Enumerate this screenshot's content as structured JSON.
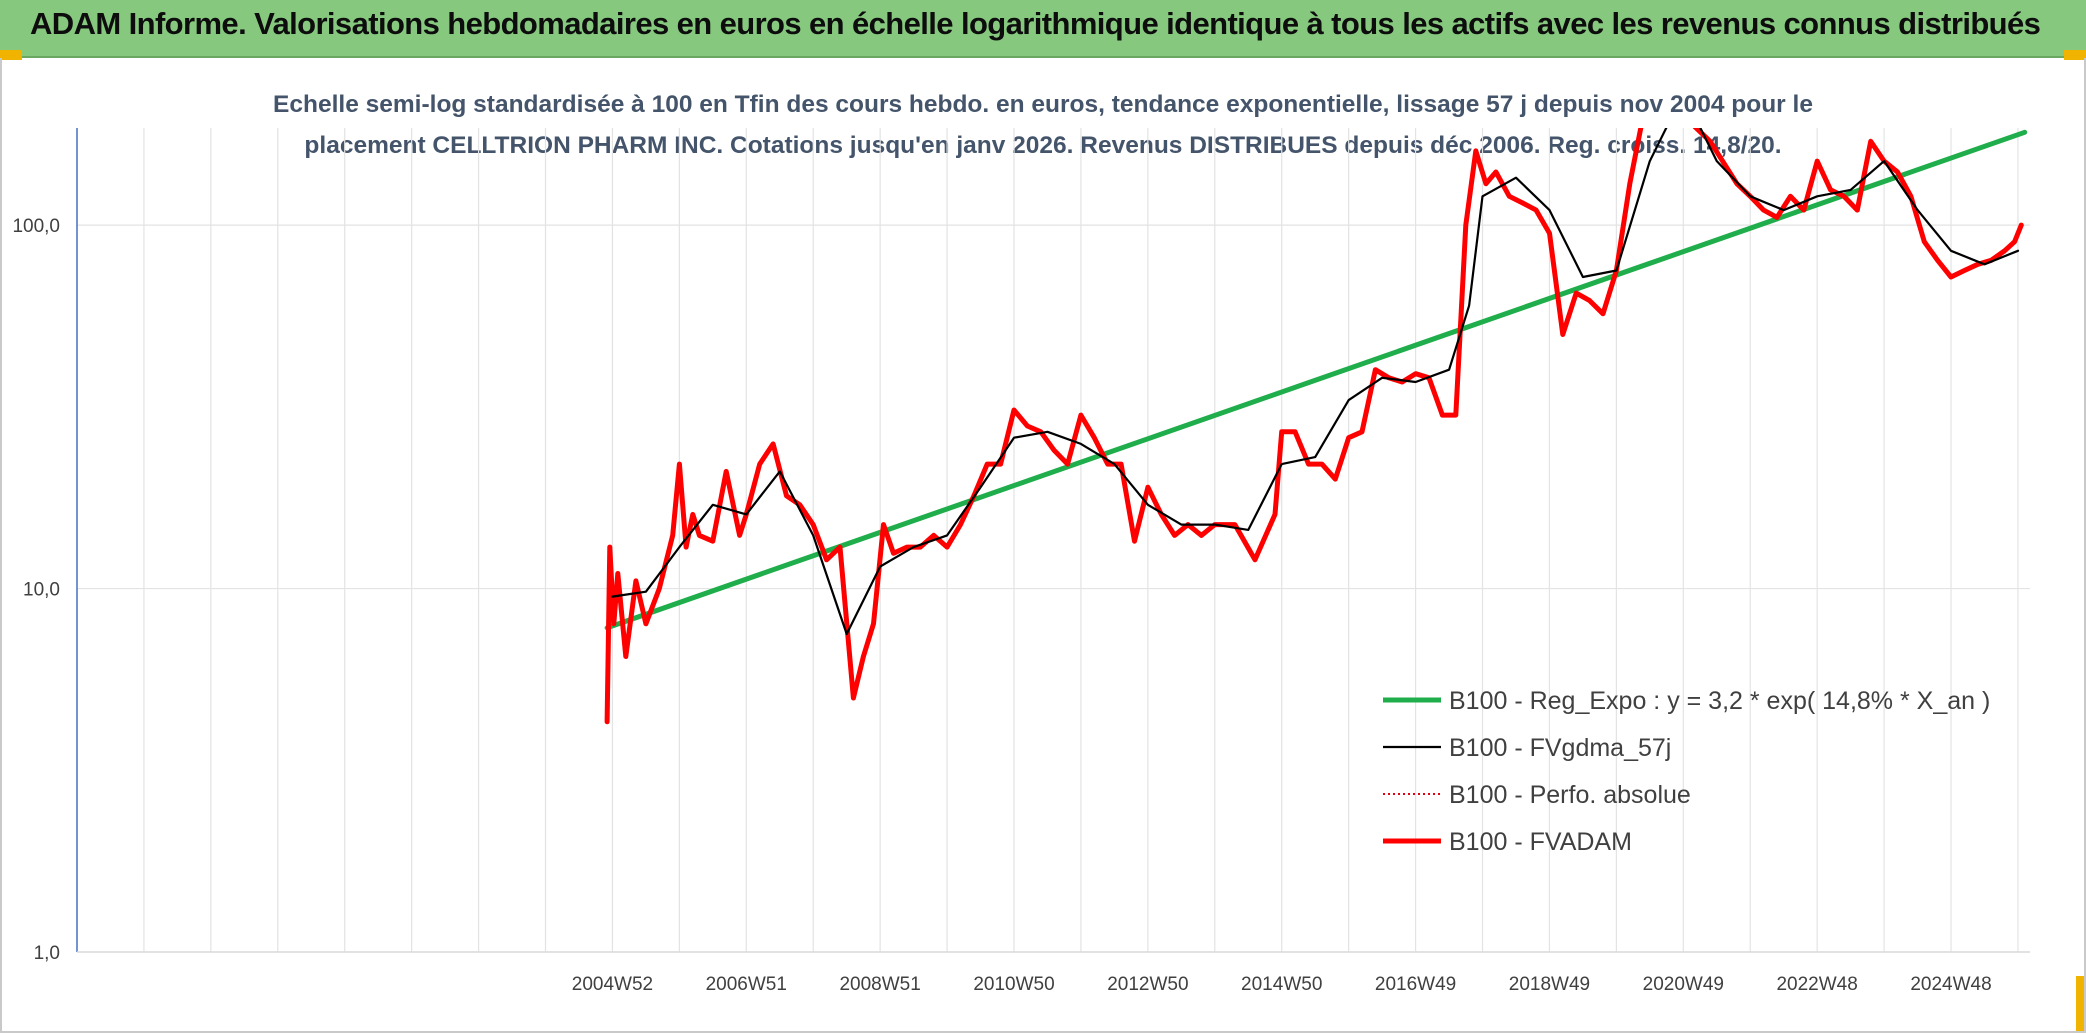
{
  "banner": {
    "title": "ADAM Informe. Valorisations hebdomadaires en euros en échelle logarithmique identique à tous les actifs avec les revenus connus distribués"
  },
  "chart_data": {
    "type": "line",
    "subtitle_lines": [
      "Echelle semi-log standardisée à 100 en Tfin des cours hebdo. en euros, tendance exponentielle, lissage 57 j depuis nov 2004 pour le",
      "placement CELLTRION PHARM INC. Cotations jusqu'en janv 2026. Revenus DISTRIBUES depuis déc 2006. Reg. croiss. 14,8/20."
    ],
    "y_scale": "log",
    "ylim": [
      1,
      185
    ],
    "y_ticks": [
      {
        "value": 1,
        "label": "1,0"
      },
      {
        "value": 10,
        "label": "10,0"
      },
      {
        "value": 100,
        "label": "100,0"
      }
    ],
    "xlim": [
      1997.0,
      2026.15
    ],
    "x_ticks": [
      {
        "value": 2005.0,
        "label": "2004W52"
      },
      {
        "value": 2007.0,
        "label": "2006W51"
      },
      {
        "value": 2009.0,
        "label": "2008W51"
      },
      {
        "value": 2011.0,
        "label": "2010W50"
      },
      {
        "value": 2013.0,
        "label": "2012W50"
      },
      {
        "value": 2015.0,
        "label": "2014W50"
      },
      {
        "value": 2017.0,
        "label": "2016W49"
      },
      {
        "value": 2019.0,
        "label": "2018W49"
      },
      {
        "value": 2021.0,
        "label": "2020W49"
      },
      {
        "value": 2023.0,
        "label": "2022W48"
      },
      {
        "value": 2025.0,
        "label": "2024W48"
      }
    ],
    "grid": true,
    "legend_position": "bottom-right",
    "series": [
      {
        "name": "B100 - Reg_Expo : y = 3,2 * exp( 14,8% *  X_an )",
        "color": "#1fae4b",
        "style": "thick",
        "x": [
          2004.92,
          2026.1
        ],
        "y": [
          7.8,
          180
        ]
      },
      {
        "name": "B100 - FVgdma_57j",
        "color": "#000000",
        "style": "thin",
        "x": [
          2005.0,
          2005.5,
          2006.0,
          2006.5,
          2007.0,
          2007.5,
          2008.0,
          2008.5,
          2009.0,
          2009.5,
          2010.0,
          2010.5,
          2011.0,
          2011.5,
          2012.0,
          2012.5,
          2013.0,
          2013.5,
          2014.0,
          2014.5,
          2015.0,
          2015.5,
          2016.0,
          2016.5,
          2017.0,
          2017.5,
          2017.8,
          2018.0,
          2018.5,
          2019.0,
          2019.5,
          2020.0,
          2020.5,
          2021.0,
          2021.5,
          2022.0,
          2022.5,
          2023.0,
          2023.5,
          2024.0,
          2024.5,
          2025.0,
          2025.5,
          2026.0
        ],
        "y": [
          9.5,
          9.8,
          13.0,
          17.0,
          16.0,
          21.0,
          14.0,
          7.5,
          11.5,
          13.0,
          14.0,
          19.0,
          26.0,
          27.0,
          25.0,
          22.0,
          17.0,
          15.0,
          15.0,
          14.5,
          22.0,
          23.0,
          33.0,
          38.0,
          37.0,
          40.0,
          60.0,
          120.0,
          135.0,
          110.0,
          72.0,
          75.0,
          150.0,
          230.0,
          150.0,
          120.0,
          110.0,
          120.0,
          125.0,
          150.0,
          110.0,
          85.0,
          78.0,
          85.0
        ]
      },
      {
        "name": "B100 - Perfo. absolue",
        "color": "#e0000f",
        "style": "dotted",
        "x": [],
        "y": []
      },
      {
        "name": "B100 - FVADAM",
        "color": "#ff0000",
        "style": "thick",
        "x": [
          2004.92,
          2004.96,
          2005.02,
          2005.08,
          2005.2,
          2005.35,
          2005.5,
          2005.7,
          2005.9,
          2006.0,
          2006.1,
          2006.2,
          2006.3,
          2006.5,
          2006.7,
          2006.9,
          2007.0,
          2007.2,
          2007.4,
          2007.6,
          2007.8,
          2008.0,
          2008.2,
          2008.4,
          2008.6,
          2008.75,
          2008.9,
          2009.05,
          2009.2,
          2009.4,
          2009.6,
          2009.8,
          2010.0,
          2010.2,
          2010.4,
          2010.6,
          2010.8,
          2011.0,
          2011.2,
          2011.4,
          2011.6,
          2011.8,
          2012.0,
          2012.2,
          2012.4,
          2012.6,
          2012.8,
          2013.0,
          2013.2,
          2013.4,
          2013.6,
          2013.8,
          2014.0,
          2014.3,
          2014.6,
          2014.9,
          2015.0,
          2015.2,
          2015.4,
          2015.6,
          2015.8,
          2016.0,
          2016.2,
          2016.4,
          2016.6,
          2016.8,
          2017.0,
          2017.2,
          2017.4,
          2017.6,
          2017.75,
          2017.9,
          2018.05,
          2018.2,
          2018.4,
          2018.6,
          2018.8,
          2019.0,
          2019.2,
          2019.4,
          2019.6,
          2019.8,
          2020.0,
          2020.2,
          2020.4,
          2020.6,
          2020.8,
          2021.0,
          2021.4,
          2021.8,
          2022.0,
          2022.2,
          2022.4,
          2022.6,
          2022.8,
          2023.0,
          2023.2,
          2023.4,
          2023.6,
          2023.8,
          2024.0,
          2024.2,
          2024.4,
          2024.6,
          2024.8,
          2025.0,
          2025.2,
          2025.4,
          2025.6,
          2025.8,
          2025.95,
          2026.05
        ],
        "y": [
          4.3,
          13.0,
          8.0,
          11.0,
          6.5,
          10.5,
          8.0,
          10.0,
          14.0,
          22.0,
          13.0,
          16.0,
          14.0,
          13.5,
          21.0,
          14.0,
          16.0,
          22.0,
          25.0,
          18.0,
          17.0,
          15.0,
          12.0,
          13.0,
          5.0,
          6.5,
          8.0,
          15.0,
          12.5,
          13.0,
          13.0,
          14.0,
          13.0,
          15.0,
          18.0,
          22.0,
          22.0,
          31.0,
          28.0,
          27.0,
          24.0,
          22.0,
          30.0,
          26.0,
          22.0,
          22.0,
          13.5,
          19.0,
          16.0,
          14.0,
          15.0,
          14.0,
          15.0,
          15.0,
          12.0,
          16.0,
          27.0,
          27.0,
          22.0,
          22.0,
          20.0,
          26.0,
          27.0,
          40.0,
          38.0,
          37.0,
          39.0,
          38.0,
          30.0,
          30.0,
          100.0,
          160.0,
          130.0,
          140.0,
          120.0,
          115.0,
          110.0,
          95.0,
          50.0,
          65.0,
          62.0,
          57.0,
          75.0,
          130.0,
          200.0,
          250.0,
          300.0,
          200.0,
          170.0,
          130.0,
          120.0,
          110.0,
          105.0,
          120.0,
          110.0,
          150.0,
          125.0,
          120.0,
          110.0,
          170.0,
          150.0,
          140.0,
          120.0,
          90.0,
          80.0,
          72.0,
          75.0,
          78.0,
          80.0,
          85.0,
          90.0,
          100.0
        ]
      }
    ]
  }
}
